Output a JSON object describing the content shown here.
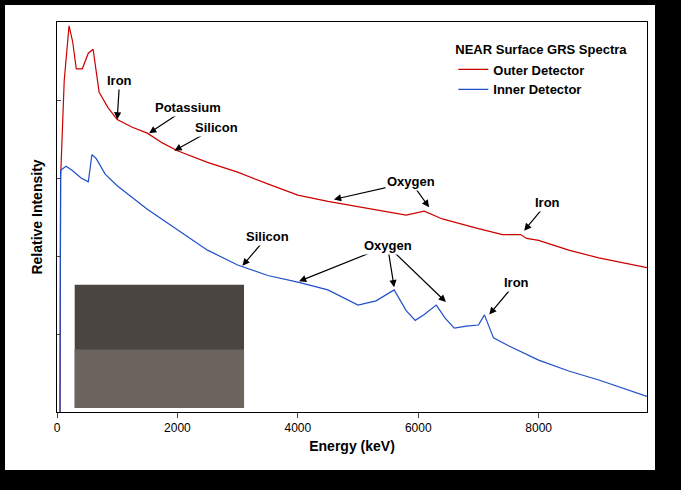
{
  "chart_data": {
    "type": "line",
    "legend_title": "NEAR Surface GRS Spectra",
    "x_label": "Energy (keV)",
    "y_label": "Relative Intensity",
    "xlim": [
      0,
      9800
    ],
    "ylim": [
      0,
      100
    ],
    "xticks": [
      0,
      2000,
      4000,
      6000,
      8000
    ],
    "tick_labels": "x",
    "grid": false,
    "legend": "upper right",
    "series": [
      {
        "name": "Outer Detector",
        "color": "#cc0000",
        "x": [
          50,
          60,
          120,
          200,
          260,
          320,
          420,
          520,
          600,
          700,
          850,
          1000,
          1250,
          1500,
          1750,
          2000,
          2500,
          3000,
          3500,
          4000,
          4500,
          5000,
          5500,
          5800,
          6100,
          6400,
          7000,
          7400,
          7700,
          7800,
          8000,
          8500,
          9000,
          9500,
          9800
        ],
        "values": [
          0,
          60,
          85,
          99,
          95,
          88,
          88,
          92,
          93,
          82,
          78,
          75,
          73,
          71.5,
          69,
          67,
          64,
          61.5,
          58.5,
          55.6,
          54,
          52.6,
          51.3,
          50.5,
          51.5,
          49.5,
          47,
          45.5,
          45.5,
          44.5,
          44,
          41.5,
          39.5,
          38,
          37
        ]
      },
      {
        "name": "Inner Detector",
        "color": "#1f4fc8",
        "x": [
          50,
          60,
          150,
          250,
          400,
          520,
          580,
          650,
          800,
          1000,
          1500,
          2000,
          2500,
          3000,
          3500,
          4000,
          4500,
          5000,
          5300,
          5600,
          5800,
          5950,
          6100,
          6300,
          6450,
          6600,
          6800,
          7000,
          7100,
          7250,
          7500,
          8000,
          8500,
          9000,
          9500,
          9800
        ],
        "values": [
          0,
          62,
          63,
          62,
          60,
          59,
          66,
          65,
          61,
          58,
          52,
          46.7,
          41.5,
          37.7,
          35,
          33.3,
          31.3,
          27.4,
          28.5,
          31.3,
          26,
          23.5,
          25,
          27.4,
          24,
          21.5,
          22,
          22.3,
          24.9,
          19,
          17,
          13.3,
          10.5,
          8.2,
          5.5,
          4
        ]
      }
    ],
    "annotations": [
      {
        "text": "Iron",
        "x": 1040,
        "y": 85,
        "arrows": [
          {
            "x": 1000,
            "y": 75
          }
        ]
      },
      {
        "text": "Potassium",
        "x": 2170,
        "y": 78,
        "arrows": [
          {
            "x": 1530,
            "y": 71.5
          }
        ]
      },
      {
        "text": "Silicon",
        "x": 2650,
        "y": 73,
        "arrows": [
          {
            "x": 1950,
            "y": 67
          }
        ]
      },
      {
        "text": "Oxygen",
        "x": 5880,
        "y": 59,
        "arrows": [
          {
            "x": 4600,
            "y": 54.5
          },
          {
            "x": 6180,
            "y": 52.5
          }
        ]
      },
      {
        "text": "Iron",
        "x": 8140,
        "y": 53.6,
        "arrows": [
          {
            "x": 7760,
            "y": 46.5
          }
        ]
      },
      {
        "text": "Silicon",
        "x": 3490,
        "y": 44.9,
        "arrows": [
          {
            "x": 3080,
            "y": 37.5
          }
        ]
      },
      {
        "text": "Oxygen",
        "x": 5490,
        "y": 42.6,
        "arrows": [
          {
            "x": 4020,
            "y": 33.5
          },
          {
            "x": 5600,
            "y": 32
          },
          {
            "x": 6460,
            "y": 28.2
          }
        ]
      },
      {
        "text": "Iron",
        "x": 7630,
        "y": 33.3,
        "arrows": [
          {
            "x": 7180,
            "y": 25
          }
        ]
      }
    ]
  }
}
